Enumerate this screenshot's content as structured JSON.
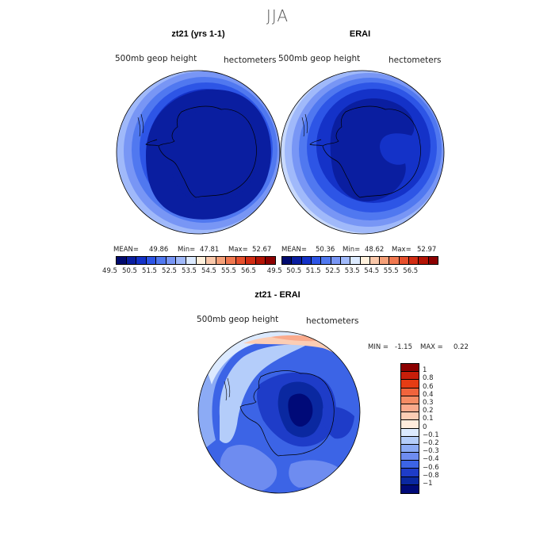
{
  "figure": {
    "title": "JJA",
    "units": "hectometers",
    "field": "500mb  geop  height"
  },
  "panels": [
    {
      "title": "zt21 (yrs 1-1)",
      "mean_label": "MEAN=",
      "mean": "49.86",
      "min_label": "Min=",
      "min": "47.81",
      "max_label": "Max=",
      "max": "52.67"
    },
    {
      "title": "ERAI",
      "mean_label": "MEAN=",
      "mean": "50.36",
      "min_label": "Min=",
      "min": "48.62",
      "max_label": "Max=",
      "max": "52.97"
    }
  ],
  "diff": {
    "title": "zt21 - ERAI",
    "min_label": "MIN =",
    "min": "-1.15",
    "max_label": "MAX =",
    "max": "0.22"
  },
  "top_colorbar": {
    "ticks": [
      "49.5",
      "50.5",
      "51.5",
      "52.5",
      "53.5",
      "54.5",
      "55.5",
      "56.5"
    ],
    "colors": [
      "#000a6e",
      "#0a1ea0",
      "#1432c8",
      "#2d55e6",
      "#5078f0",
      "#7896f5",
      "#a0b9fa",
      "#dceaff",
      "#fff0dc",
      "#fac8aa",
      "#f5a078",
      "#f07850",
      "#e6502d",
      "#d22d14",
      "#b41405",
      "#8c0000"
    ]
  },
  "diff_colorbar": {
    "ticks": [
      "1",
      "0.8",
      "0.6",
      "0.4",
      "0.3",
      "0.2",
      "0.1",
      "0",
      "−0.1",
      "−0.2",
      "−0.3",
      "−0.4",
      "−0.6",
      "−0.8",
      "−1"
    ],
    "colors": [
      "#8c0000",
      "#c81e0a",
      "#e63c14",
      "#f0643c",
      "#f58c64",
      "#faaa8c",
      "#fccdb4",
      "#ffebdc",
      "#dceaff",
      "#b4cdfa",
      "#8cabf5",
      "#6e8cf0",
      "#3c64e6",
      "#1e3cc8",
      "#0a28a0",
      "#000a78"
    ]
  },
  "chart_data": [
    {
      "type": "heatmap",
      "title": "zt21 (yrs 1-1)",
      "subtitle": "500mb  geop  height",
      "units": "hectometers",
      "projection": "south polar stereographic",
      "stats": {
        "mean": 49.86,
        "min": 47.81,
        "max": 52.67
      },
      "levels": [
        49.5,
        50.5,
        51.5,
        52.5,
        53.5,
        54.5,
        55.5,
        56.5
      ]
    },
    {
      "type": "heatmap",
      "title": "ERAI",
      "subtitle": "500mb  geop  height",
      "units": "hectometers",
      "projection": "south polar stereographic",
      "stats": {
        "mean": 50.36,
        "min": 48.62,
        "max": 52.97
      },
      "levels": [
        49.5,
        50.5,
        51.5,
        52.5,
        53.5,
        54.5,
        55.5,
        56.5
      ]
    },
    {
      "type": "heatmap",
      "title": "zt21 - ERAI",
      "subtitle": "500mb  geop  height",
      "units": "hectometers",
      "projection": "south polar stereographic",
      "stats": {
        "min": -1.15,
        "max": 0.22
      },
      "levels": [
        -1,
        -0.8,
        -0.6,
        -0.4,
        -0.3,
        -0.2,
        -0.1,
        0,
        0.1,
        0.2,
        0.3,
        0.4,
        0.6,
        0.8,
        1
      ]
    }
  ]
}
